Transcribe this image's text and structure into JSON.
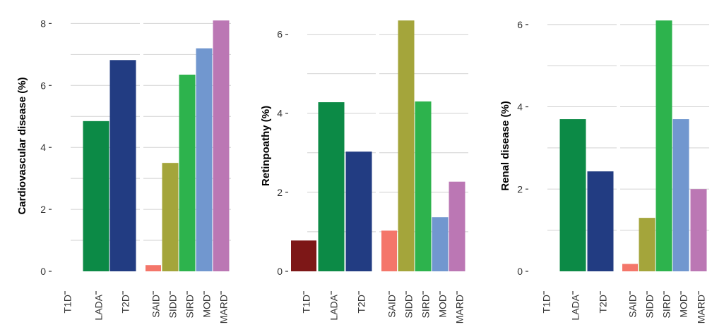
{
  "chart_data": [
    {
      "type": "bar",
      "ylabel": "Cardiovascular disease (%)",
      "ylim": [
        0,
        8.1
      ],
      "yticks": [
        0,
        2,
        4,
        6,
        8
      ],
      "grid": true,
      "categories": [
        "T1D",
        "LADA",
        "T2D",
        "SAID",
        "SIDD",
        "SIRD",
        "MOD",
        "MARD"
      ],
      "values": [
        0,
        4.85,
        6.82,
        0.2,
        3.5,
        6.35,
        7.2,
        8.1
      ],
      "colors": [
        "#7d1717",
        "#0c8a46",
        "#223c82",
        "#f4766a",
        "#a4a53b",
        "#2db34d",
        "#7197cf",
        "#bb77b4"
      ]
    },
    {
      "type": "bar",
      "ylabel": "Retinpoathy (%)",
      "ylim": [
        0,
        6.35
      ],
      "yticks": [
        0,
        2,
        4,
        6
      ],
      "grid": true,
      "categories": [
        "T1D",
        "LADA",
        "T2D",
        "SAID",
        "SIDD",
        "SIRD",
        "MOD",
        "MARD"
      ],
      "values": [
        0.78,
        4.28,
        3.03,
        1.03,
        6.35,
        4.3,
        1.37,
        2.27
      ],
      "colors": [
        "#7d1717",
        "#0c8a46",
        "#223c82",
        "#f4766a",
        "#a4a53b",
        "#2db34d",
        "#7197cf",
        "#bb77b4"
      ]
    },
    {
      "type": "bar",
      "ylabel": "Renal disease (%)",
      "ylim": [
        0,
        6.1
      ],
      "yticks": [
        0,
        2,
        4,
        6
      ],
      "grid": true,
      "categories": [
        "T1D",
        "LADA",
        "T2D",
        "SAID",
        "SIDD",
        "SIRD",
        "MOD",
        "MARD"
      ],
      "values": [
        0,
        3.7,
        2.43,
        0.18,
        1.3,
        6.1,
        3.7,
        2.0
      ],
      "colors": [
        "#7d1717",
        "#0c8a46",
        "#223c82",
        "#f4766a",
        "#a4a53b",
        "#2db34d",
        "#7197cf",
        "#bb77b4"
      ]
    }
  ]
}
